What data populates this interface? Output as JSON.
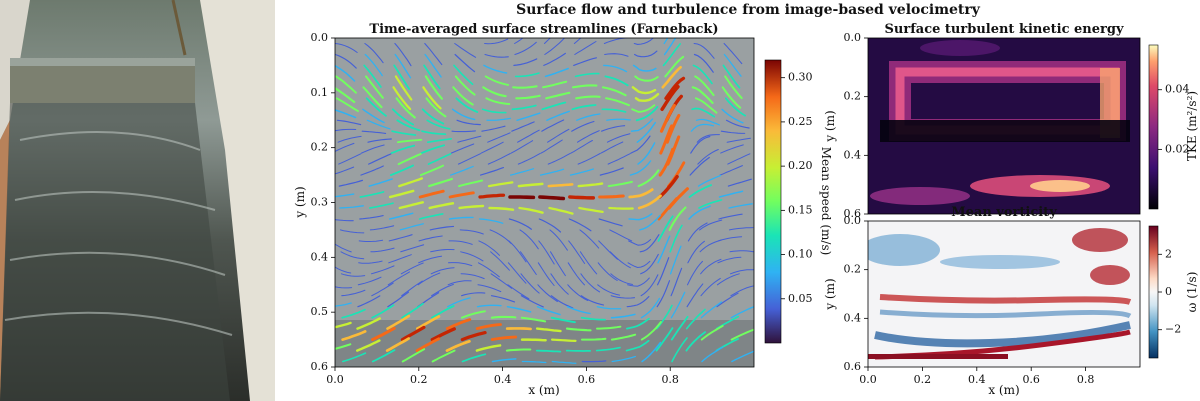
{
  "suptitle": "Surface flow and turbulence from image-based velocimetry",
  "chart_data": [
    {
      "type": "image",
      "panel": "photo",
      "description_hidden": true
    },
    {
      "type": "streamplot",
      "title": "Time-averaged surface streamlines (Farneback)",
      "xlabel": "x (m)",
      "ylabel": "y (m)",
      "xlim": [
        0.0,
        1.0
      ],
      "ylim": [
        0.6,
        0.0
      ],
      "xticks": [
        "0.0",
        "0.2",
        "0.4",
        "0.6",
        "0.8"
      ],
      "yticks": [
        "0.0",
        "0.1",
        "0.2",
        "0.3",
        "0.4",
        "0.5",
        "0.6"
      ],
      "colorbar": {
        "label": "Mean speed (m/s)",
        "range": [
          0.0,
          0.32
        ],
        "ticks": [
          "0.05",
          "0.10",
          "0.15",
          "0.20",
          "0.25",
          "0.30"
        ],
        "cmap": "turbo"
      },
      "features": {
        "high_speed_bands_y": [
          0.28,
          0.55
        ],
        "right_edge_high_speed_x": 0.8
      }
    },
    {
      "type": "heatmap",
      "title": "Surface turbulent kinetic energy",
      "xlabel": "",
      "ylabel": "y (m)",
      "ylim": [
        0.6,
        0.0
      ],
      "yticks": [
        "0.0",
        "0.2",
        "0.4",
        "0.6"
      ],
      "colorbar": {
        "label": "TKE (m²/s²)",
        "range": [
          0.0,
          0.055
        ],
        "ticks": [
          "0.02",
          "0.04"
        ],
        "cmap": "magma"
      }
    },
    {
      "type": "heatmap",
      "title": "Mean vorticity",
      "xlabel": "x (m)",
      "ylabel": "y (m)",
      "xlim": [
        0.0,
        1.0
      ],
      "ylim": [
        0.6,
        0.0
      ],
      "xticks": [
        "0.0",
        "0.2",
        "0.4",
        "0.6",
        "0.8"
      ],
      "yticks": [
        "0.0",
        "0.2",
        "0.4",
        "0.6"
      ],
      "colorbar": {
        "label": "ω (1/s)",
        "range": [
          -3.5,
          3.5
        ],
        "ticks": [
          "2",
          "0",
          "−2"
        ],
        "cmap": "RdBu_r"
      }
    }
  ]
}
